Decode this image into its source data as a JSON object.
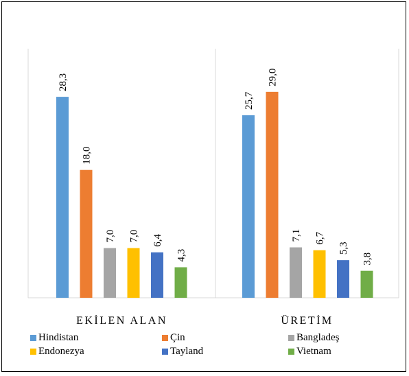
{
  "chart_data": {
    "type": "bar",
    "categories": [
      "EKİLEN ALAN",
      "ÜRETİM"
    ],
    "series": [
      {
        "name": "Hindistan",
        "values": [
          28.3,
          25.7
        ],
        "labels": [
          "28,3",
          "25,7"
        ],
        "color": "#5B9BD5"
      },
      {
        "name": "Çin",
        "values": [
          18.0,
          29.0
        ],
        "labels": [
          "18,0",
          "29,0"
        ],
        "color": "#ED7D31"
      },
      {
        "name": "Bangladeş",
        "values": [
          7.0,
          7.1
        ],
        "labels": [
          "7,0",
          "7,1"
        ],
        "color": "#A5A5A5"
      },
      {
        "name": "Endonezya",
        "values": [
          7.0,
          6.7
        ],
        "labels": [
          "7,0",
          "6,7"
        ],
        "color": "#FFC000"
      },
      {
        "name": "Tayland",
        "values": [
          6.4,
          5.3
        ],
        "labels": [
          "6,4",
          "5,3"
        ],
        "color": "#4472C4"
      },
      {
        "name": "Vietnam",
        "values": [
          4.3,
          3.8
        ],
        "labels": [
          "4,3",
          "3,8"
        ],
        "color": "#70AD47"
      }
    ],
    "ylim": [
      0,
      35
    ],
    "grid": false,
    "legend": "bottom",
    "title": "",
    "xlabel": "",
    "ylabel": ""
  }
}
